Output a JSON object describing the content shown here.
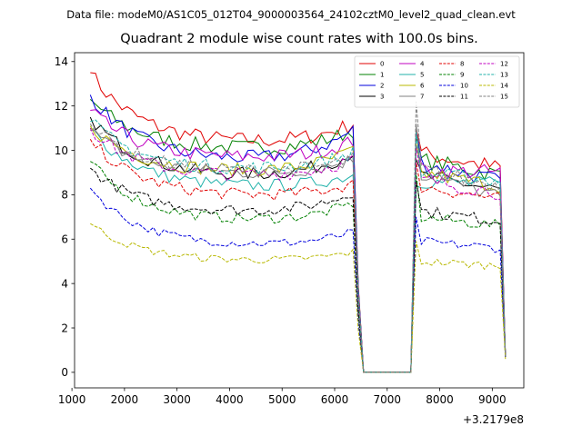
{
  "figure": {
    "suptitle": "Data file: modeM0/AS1C05_012T04_9000003564_24102cztM0_level2_quad_clean.evt",
    "title": "Quadrant 2 module wise count rates with 100.0s bins.",
    "offset_label": "+3.2179e8"
  },
  "chart_data": {
    "type": "line",
    "title": "Quadrant 2 module wise count rates with 100.0s bins.",
    "xlabel": "",
    "ylabel": "",
    "x_offset": 321790000,
    "xlim": [
      1050,
      9600
    ],
    "ylim": [
      -0.7,
      14.4
    ],
    "xticks": [
      1000,
      2000,
      3000,
      4000,
      5000,
      6000,
      7000,
      8000,
      9000
    ],
    "xtick_labels": [
      "1000",
      "2000",
      "3000",
      "4000",
      "5000",
      "6000",
      "7000",
      "8000",
      "9000"
    ],
    "yticks": [
      0,
      2,
      4,
      6,
      8,
      10,
      12,
      14
    ],
    "ytick_labels": [
      "0",
      "2",
      "4",
      "6",
      "8",
      "10",
      "12",
      "14"
    ],
    "grid": false,
    "legend_position": "top-right",
    "legend_columns": 4,
    "segments": [
      {
        "start": 1350,
        "end": 6450,
        "trend": "decay"
      },
      {
        "start": 6550,
        "end": 7450,
        "trend": "zero"
      },
      {
        "start": 7550,
        "end": 9250,
        "trend": "flat"
      }
    ],
    "series": [
      {
        "name": "0",
        "color": "#e00000",
        "dash": "solid",
        "start": 13.5,
        "plateau": 10.3,
        "pre_drop": 11.2,
        "recover": 11.0,
        "second": 9.9,
        "end": 9.2,
        "final": 0.7
      },
      {
        "name": "1",
        "color": "#008000",
        "dash": "solid",
        "start": 12.3,
        "plateau": 10.0,
        "pre_drop": 10.9,
        "recover": 10.6,
        "second": 9.6,
        "end": 8.9,
        "final": 0.7
      },
      {
        "name": "2",
        "color": "#0000dd",
        "dash": "solid",
        "start": 12.5,
        "plateau": 9.5,
        "pre_drop": 10.9,
        "recover": 10.9,
        "second": 9.5,
        "end": 8.6,
        "final": 0.7
      },
      {
        "name": "3",
        "color": "#000000",
        "dash": "solid",
        "start": 11.5,
        "plateau": 8.8,
        "pre_drop": 9.9,
        "recover": 9.6,
        "second": 8.9,
        "end": 8.2,
        "final": 0.7
      },
      {
        "name": "4",
        "color": "#c000c0",
        "dash": "solid",
        "start": 11.8,
        "plateau": 9.6,
        "pre_drop": 10.4,
        "recover": 10.2,
        "second": 9.1,
        "end": 9.0,
        "final": 0.7
      },
      {
        "name": "5",
        "color": "#20b2aa",
        "dash": "solid",
        "start": 11.0,
        "plateau": 8.3,
        "pre_drop": 8.9,
        "recover": 8.4,
        "second": 8.6,
        "end": 8.5,
        "final": 0.7
      },
      {
        "name": "6",
        "color": "#b8b800",
        "dash": "solid",
        "start": 11.1,
        "plateau": 9.0,
        "pre_drop": 10.0,
        "recover": 10.3,
        "second": 9.0,
        "end": 8.4,
        "final": 0.7
      },
      {
        "name": "7",
        "color": "#808080",
        "dash": "solid",
        "start": 10.9,
        "plateau": 8.9,
        "pre_drop": 9.6,
        "recover": 11.2,
        "second": 9.0,
        "end": 7.9,
        "final": 0.7
      },
      {
        "name": "8",
        "color": "#e00000",
        "dash": "dashed",
        "start": 10.5,
        "plateau": 7.9,
        "pre_drop": 8.5,
        "recover": 9.5,
        "second": 8.4,
        "end": 7.8,
        "final": 0.7
      },
      {
        "name": "9",
        "color": "#008000",
        "dash": "dashed",
        "start": 9.5,
        "plateau": 6.8,
        "pre_drop": 7.6,
        "recover": 9.0,
        "second": 7.0,
        "end": 6.6,
        "final": 0.7
      },
      {
        "name": "10",
        "color": "#0000dd",
        "dash": "dashed",
        "start": 8.3,
        "plateau": 5.7,
        "pre_drop": 6.3,
        "recover": 7.0,
        "second": 5.9,
        "end": 5.6,
        "final": 0.7
      },
      {
        "name": "11",
        "color": "#000000",
        "dash": "dashed",
        "start": 9.2,
        "plateau": 7.2,
        "pre_drop": 8.1,
        "recover": 8.6,
        "second": 7.3,
        "end": 6.8,
        "final": 0.7
      },
      {
        "name": "12",
        "color": "#c000c0",
        "dash": "dashed",
        "start": 11.0,
        "plateau": 8.8,
        "pre_drop": 9.6,
        "recover": 10.2,
        "second": 8.7,
        "end": 8.1,
        "final": 0.7
      },
      {
        "name": "13",
        "color": "#20b2aa",
        "dash": "dashed",
        "start": 11.3,
        "plateau": 9.1,
        "pre_drop": 9.9,
        "recover": 10.8,
        "second": 9.0,
        "end": 8.6,
        "final": 0.7
      },
      {
        "name": "14",
        "color": "#b8b800",
        "dash": "dashed",
        "start": 6.7,
        "plateau": 5.0,
        "pre_drop": 5.4,
        "recover": 5.9,
        "second": 5.0,
        "end": 4.8,
        "final": 0.6
      },
      {
        "name": "15",
        "color": "#808080",
        "dash": "dashed",
        "start": 11.2,
        "plateau": 9.0,
        "pre_drop": 9.6,
        "recover": 12.2,
        "second": 9.2,
        "end": 8.4,
        "final": 0.7
      }
    ]
  }
}
